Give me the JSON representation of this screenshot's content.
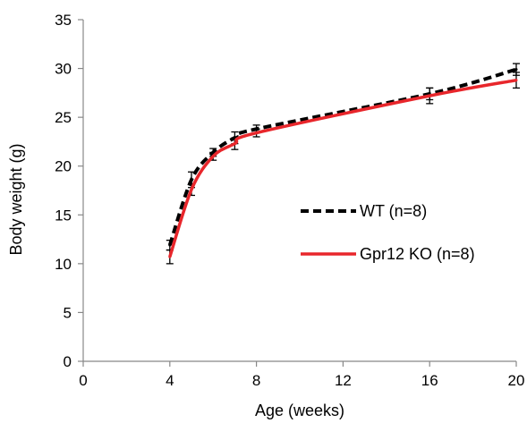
{
  "chart_data": {
    "type": "line",
    "xlabel": "Age (weeks)",
    "ylabel": "Body weight (g)",
    "xlim": [
      0,
      20
    ],
    "ylim": [
      0,
      35
    ],
    "xticks": [
      0,
      4,
      8,
      12,
      16,
      20
    ],
    "yticks": [
      0,
      5,
      10,
      15,
      20,
      25,
      30,
      35
    ],
    "grid": false,
    "legend_position": "center-right",
    "x": [
      4,
      5,
      6,
      7,
      8,
      16,
      20
    ],
    "series": [
      {
        "name": "WT (n=8)",
        "color": "#000000",
        "style": "dashed",
        "values": [
          11.9,
          18.6,
          21.4,
          22.9,
          23.8,
          27.4,
          29.9
        ],
        "error": [
          0.5,
          0.8,
          0.4,
          0.6,
          0.4,
          0.6,
          0.6
        ]
      },
      {
        "name": "Gpr12 KO (n=8)",
        "color": "#e8262b",
        "style": "solid",
        "values": [
          10.7,
          17.6,
          21.0,
          22.3,
          23.4,
          27.2,
          28.8
        ],
        "error": [
          0.7,
          0.6,
          0.4,
          0.6,
          0.4,
          0.8,
          0.8
        ]
      }
    ]
  }
}
